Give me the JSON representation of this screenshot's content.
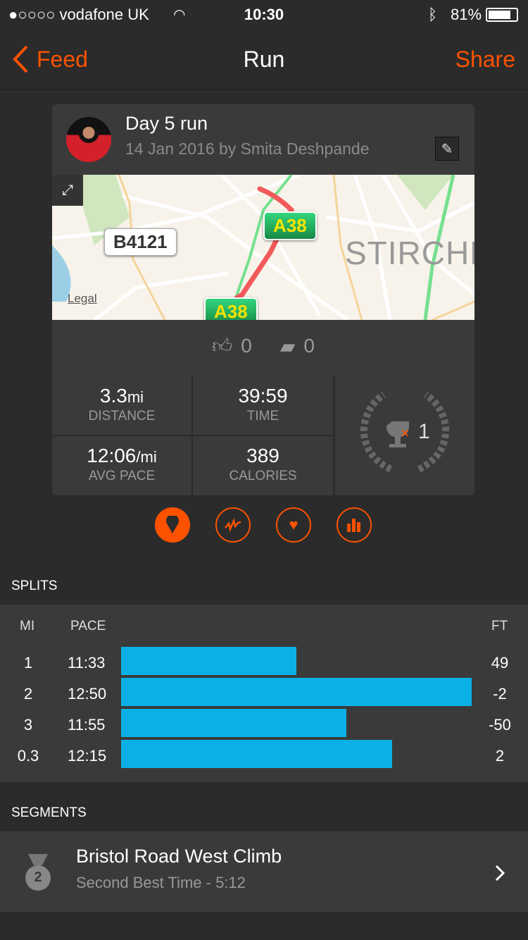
{
  "status": {
    "carrier": "●○○○○ vodafone UK",
    "time": "10:30",
    "battery": "81%",
    "battery_level": 0.81
  },
  "nav": {
    "back": "Feed",
    "title": "Run",
    "share": "Share"
  },
  "activity": {
    "title": "Day 5 run",
    "subtitle": "14 Jan 2016 by Smita Deshpande"
  },
  "map": {
    "labels": [
      "B4121",
      "A38",
      "A38"
    ],
    "place": "STIRCHL",
    "legal": "Legal"
  },
  "social": {
    "kudos": "0",
    "comments": "0"
  },
  "stats": {
    "distance": {
      "value": "3.3",
      "unit": "mi",
      "label": "DISTANCE"
    },
    "time": {
      "value": "39:59",
      "label": "TIME"
    },
    "pace": {
      "value": "12:06",
      "unit": "/mi",
      "label": "AVG PACE"
    },
    "calories": {
      "value": "389",
      "label": "CALORIES"
    },
    "trophies": "1"
  },
  "tabs": [
    "map-pin-icon",
    "pace-graph-icon",
    "heart-icon",
    "bar-chart-icon"
  ],
  "splits": {
    "title": "SPLITS",
    "headers": {
      "mi": "MI",
      "pace": "PACE",
      "ft": "FT"
    },
    "rows": [
      {
        "mi": "1",
        "pace": "11:33",
        "ft": "49"
      },
      {
        "mi": "2",
        "pace": "12:50",
        "ft": "-2"
      },
      {
        "mi": "3",
        "pace": "11:55",
        "ft": "-50"
      },
      {
        "mi": "0.3",
        "pace": "12:15",
        "ft": "2"
      }
    ]
  },
  "segments": {
    "title": "SEGMENTS",
    "items": [
      {
        "rank": "2",
        "name": "Bristol Road West Climb",
        "detail": "Second Best Time - 5:12"
      }
    ]
  },
  "colors": {
    "accent": "#fc5200",
    "bar": "#0bb1e6"
  }
}
